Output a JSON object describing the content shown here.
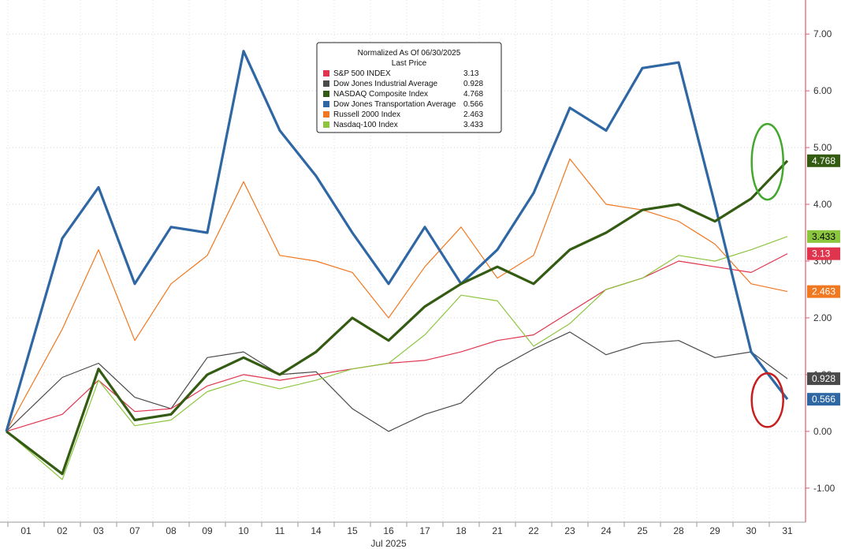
{
  "chart_data": {
    "type": "line",
    "title": "Normalized As Of 06/30/2025",
    "subtitle": "Last Price",
    "xlabel": "Jul 2025",
    "ylabel": "",
    "ylim": [
      -1.6,
      7.6
    ],
    "y_ticks": [
      "-1.00",
      "0.00",
      "1.00",
      "2.00",
      "3.00",
      "4.00",
      "5.00",
      "6.00",
      "7.00"
    ],
    "categories": [
      "01",
      "02",
      "03",
      "07",
      "08",
      "09",
      "10",
      "11",
      "14",
      "15",
      "16",
      "17",
      "18",
      "21",
      "22",
      "23",
      "24",
      "25",
      "28",
      "29",
      "30",
      "31"
    ],
    "legend_placement": "top-center",
    "grid": true,
    "series": [
      {
        "name": "S&P 500 INDEX",
        "last": "3.13",
        "color": "#e0344d",
        "values": [
          0.0,
          0.3,
          0.9,
          0.35,
          0.4,
          0.8,
          1.0,
          0.9,
          1.0,
          1.1,
          1.2,
          1.25,
          1.4,
          1.6,
          1.7,
          2.1,
          2.5,
          2.7,
          3.0,
          2.9,
          2.8,
          3.13
        ]
      },
      {
        "name": "Dow Jones Industrial Average",
        "last": "0.928",
        "color": "#4a4a4a",
        "values": [
          0.0,
          0.95,
          1.2,
          0.6,
          0.4,
          1.3,
          1.4,
          1.0,
          1.05,
          0.4,
          0.0,
          0.3,
          0.5,
          1.1,
          1.45,
          1.75,
          1.35,
          1.55,
          1.6,
          1.3,
          1.4,
          0.928
        ]
      },
      {
        "name": "NASDAQ Composite Index",
        "last": "4.768",
        "color": "#345b12",
        "values": [
          0.0,
          -0.75,
          1.1,
          0.2,
          0.3,
          1.0,
          1.3,
          1.0,
          1.4,
          2.0,
          1.6,
          2.2,
          2.6,
          2.9,
          2.6,
          3.2,
          3.5,
          3.9,
          4.0,
          3.7,
          4.1,
          4.768
        ]
      },
      {
        "name": "Dow Jones Transportation Average",
        "last": "0.566",
        "color": "#2e67a3",
        "values": [
          0.0,
          3.4,
          4.3,
          2.6,
          3.6,
          3.5,
          6.7,
          5.3,
          4.5,
          3.5,
          2.6,
          3.6,
          2.6,
          3.2,
          4.2,
          5.7,
          5.3,
          6.4,
          6.5,
          4.0,
          1.4,
          0.566
        ]
      },
      {
        "name": "Russell 2000 Index",
        "last": "2.463",
        "color": "#f07820",
        "values": [
          0.0,
          1.8,
          3.2,
          1.6,
          2.6,
          3.1,
          4.4,
          3.1,
          3.0,
          2.8,
          2.0,
          2.9,
          3.6,
          2.7,
          3.1,
          4.8,
          4.0,
          3.9,
          3.7,
          3.3,
          2.6,
          2.463
        ]
      },
      {
        "name": "Nasdaq-100 Index",
        "last": "3.433",
        "color": "#8cc63f",
        "values": [
          0.0,
          -0.85,
          0.9,
          0.1,
          0.2,
          0.7,
          0.9,
          0.75,
          0.9,
          1.1,
          1.2,
          1.7,
          2.4,
          2.3,
          1.5,
          1.9,
          2.5,
          2.7,
          3.1,
          3.0,
          3.2,
          3.433
        ]
      }
    ],
    "annotations": [
      {
        "kind": "ellipse",
        "color": "#44a82e",
        "x_index": 20.8,
        "y": 4.75
      },
      {
        "kind": "ellipse",
        "color": "#c81e1e",
        "x_index": 20.8,
        "y": 0.55
      }
    ]
  }
}
